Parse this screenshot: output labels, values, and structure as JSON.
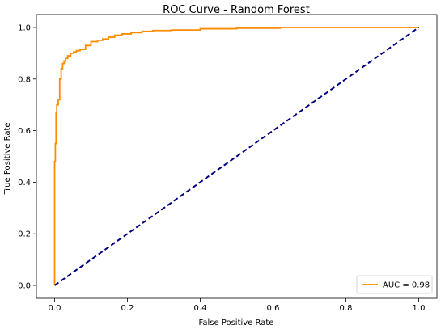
{
  "chart_data": {
    "type": "line",
    "title": "ROC Curve - Random Forest",
    "xlabel": "False Positive Rate",
    "ylabel": "True Positive Rate",
    "xlim": [
      -0.05,
      1.05
    ],
    "ylim": [
      -0.05,
      1.05
    ],
    "xticks": [
      0.0,
      0.2,
      0.4,
      0.6,
      0.8,
      1.0
    ],
    "yticks": [
      0.0,
      0.2,
      0.4,
      0.6,
      0.8,
      1.0
    ],
    "grid": false,
    "legend": {
      "position": "lower-right",
      "entries": [
        "AUC = 0.98"
      ]
    },
    "series": [
      {
        "name": "AUC = 0.98",
        "style": "solid",
        "color": "#ff8c00",
        "x": [
          0.0,
          0.0,
          0.002,
          0.002,
          0.004,
          0.004,
          0.006,
          0.006,
          0.01,
          0.01,
          0.014,
          0.014,
          0.018,
          0.018,
          0.022,
          0.022,
          0.026,
          0.026,
          0.03,
          0.03,
          0.036,
          0.036,
          0.044,
          0.044,
          0.052,
          0.052,
          0.06,
          0.06,
          0.07,
          0.07,
          0.085,
          0.085,
          0.1,
          0.1,
          0.118,
          0.118,
          0.132,
          0.132,
          0.148,
          0.148,
          0.165,
          0.165,
          0.185,
          0.185,
          0.21,
          0.21,
          0.24,
          0.24,
          0.27,
          0.27,
          0.32,
          0.32,
          0.4,
          0.4,
          0.5,
          0.5,
          0.62,
          0.62,
          1.0
        ],
        "y": [
          0.0,
          0.48,
          0.48,
          0.55,
          0.55,
          0.67,
          0.67,
          0.7,
          0.7,
          0.72,
          0.72,
          0.8,
          0.8,
          0.84,
          0.84,
          0.86,
          0.86,
          0.87,
          0.87,
          0.88,
          0.88,
          0.89,
          0.89,
          0.9,
          0.9,
          0.905,
          0.905,
          0.91,
          0.91,
          0.915,
          0.915,
          0.93,
          0.93,
          0.945,
          0.945,
          0.95,
          0.95,
          0.955,
          0.955,
          0.962,
          0.962,
          0.97,
          0.97,
          0.975,
          0.975,
          0.98,
          0.98,
          0.985,
          0.985,
          0.988,
          0.988,
          0.99,
          0.99,
          0.995,
          0.995,
          0.997,
          0.997,
          1.0,
          1.0
        ]
      },
      {
        "style": "dashed",
        "color": "#000080",
        "x": [
          0.0,
          1.0
        ],
        "y": [
          0.0,
          1.0
        ]
      }
    ]
  }
}
